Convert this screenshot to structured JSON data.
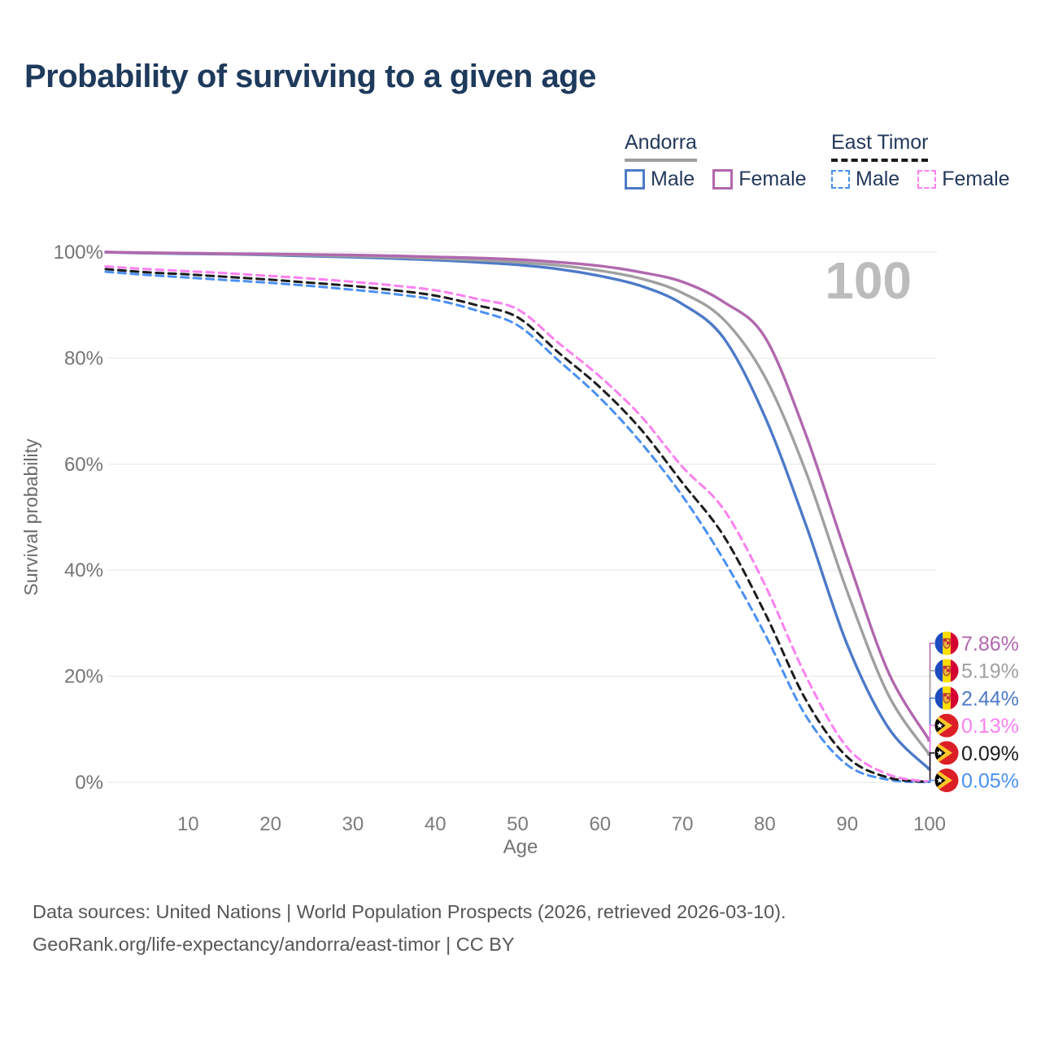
{
  "title": "Probability of surviving to a given age",
  "age_indicator": "100",
  "legend": {
    "groups": [
      {
        "label": "Andorra",
        "line_style": "solid",
        "underline_color": "#9e9e9e",
        "items": [
          {
            "label": "Male",
            "color": "#4d7ac8"
          },
          {
            "label": "Female",
            "color": "#b168ae"
          }
        ]
      },
      {
        "label": "East Timor",
        "line_style": "dashed",
        "underline_color": "#1a1a1a",
        "items": [
          {
            "label": "Male",
            "color": "#4a90f2"
          },
          {
            "label": "Female",
            "color": "#fb80f0"
          }
        ]
      }
    ]
  },
  "chart_data": {
    "type": "line",
    "xlabel": "Age",
    "ylabel": "Survival probability",
    "xlim": [
      0,
      100
    ],
    "ylim": [
      0,
      100
    ],
    "grid": "horizontal",
    "x_ticks": [
      10,
      20,
      30,
      40,
      50,
      60,
      70,
      80,
      90,
      100
    ],
    "y_ticks": [
      {
        "value": 0,
        "label": "0%"
      },
      {
        "value": 20,
        "label": "20%"
      },
      {
        "value": 40,
        "label": "40%"
      },
      {
        "value": 60,
        "label": "60%"
      },
      {
        "value": 80,
        "label": "80%"
      },
      {
        "value": 100,
        "label": "100%"
      }
    ],
    "ages": [
      0,
      5,
      10,
      15,
      20,
      25,
      30,
      35,
      40,
      45,
      50,
      55,
      60,
      65,
      70,
      75,
      80,
      85,
      90,
      95,
      100
    ],
    "series": [
      {
        "id": "andorra-female",
        "name": "Andorra Female",
        "country": "Andorra",
        "flag": "andorra",
        "style": "solid",
        "color": "#b168ae",
        "end_label": "7.86%",
        "values": [
          100,
          99.9,
          99.8,
          99.7,
          99.65,
          99.55,
          99.45,
          99.3,
          99.1,
          98.9,
          98.6,
          98.1,
          97.4,
          96.2,
          94.4,
          90.6,
          84.0,
          65.5,
          42.5,
          20.8,
          7.86
        ]
      },
      {
        "id": "andorra-all",
        "name": "Andorra",
        "country": "Andorra",
        "flag": "andorra",
        "style": "solid",
        "color": "#a0a0a0",
        "end_label": "5.19%",
        "values": [
          100,
          99.85,
          99.75,
          99.65,
          99.55,
          99.4,
          99.25,
          99.05,
          98.8,
          98.5,
          98.1,
          97.5,
          96.5,
          95.0,
          92.3,
          87.3,
          76.5,
          58.5,
          36.0,
          16.5,
          5.19
        ]
      },
      {
        "id": "andorra-male",
        "name": "Andorra Male",
        "country": "Andorra",
        "flag": "andorra",
        "style": "solid",
        "color": "#4d7ac8",
        "end_label": "2.44%",
        "values": [
          100,
          99.8,
          99.7,
          99.6,
          99.45,
          99.25,
          99.05,
          98.8,
          98.5,
          98.1,
          97.6,
          96.8,
          95.5,
          93.6,
          90.2,
          83.8,
          69.0,
          48.5,
          26.0,
          10.3,
          2.44
        ]
      },
      {
        "id": "east-timor-female",
        "name": "East Timor Female",
        "country": "East Timor",
        "flag": "east-timor",
        "style": "dashed",
        "color": "#fb80f0",
        "end_label": "0.13%",
        "values": [
          97.3,
          96.8,
          96.4,
          96.0,
          95.5,
          95.0,
          94.4,
          93.7,
          92.8,
          91.2,
          89.2,
          82.8,
          76.5,
          69.0,
          59.5,
          51.5,
          37.3,
          20.0,
          6.6,
          1.5,
          0.13
        ]
      },
      {
        "id": "east-timor-all",
        "name": "East Timor",
        "country": "East Timor",
        "flag": "east-timor",
        "style": "dashed",
        "color": "#1c1c1c",
        "end_label": "0.09%",
        "values": [
          96.8,
          96.2,
          95.8,
          95.3,
          94.8,
          94.2,
          93.6,
          92.8,
          91.8,
          90.0,
          87.7,
          81.0,
          74.5,
          66.5,
          56.5,
          46.5,
          32.0,
          15.5,
          4.8,
          0.9,
          0.09
        ]
      },
      {
        "id": "east-timor-male",
        "name": "East Timor Male",
        "country": "East Timor",
        "flag": "east-timor",
        "style": "dashed",
        "color": "#4a90f2",
        "end_label": "0.05%",
        "values": [
          96.3,
          95.7,
          95.2,
          94.7,
          94.2,
          93.6,
          92.9,
          92.1,
          91.0,
          89.0,
          86.2,
          79.5,
          72.5,
          64.0,
          54.0,
          42.0,
          28.0,
          12.5,
          3.3,
          0.5,
          0.05
        ]
      }
    ]
  },
  "footer": {
    "line1": "Data sources: United Nations | World Population Prospects (2026, retrieved 2026-03-10).",
    "line2": "GeoRank.org/life-expectancy/andorra/east-timor | CC BY"
  }
}
